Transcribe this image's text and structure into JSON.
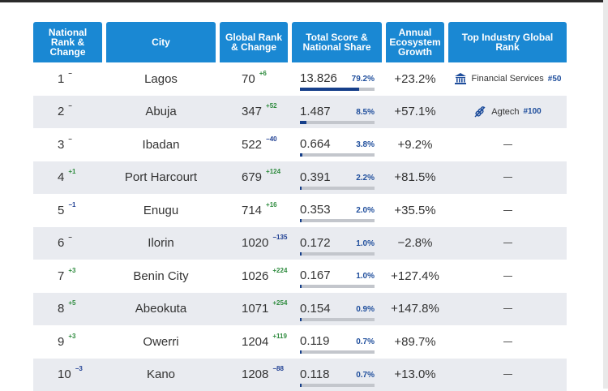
{
  "header": {
    "national_rank": "National Rank & Change",
    "city": "City",
    "global_rank": "Global Rank & Change",
    "total_score": "Total Score & National Share",
    "growth": "Annual Ecosystem Growth",
    "industry": "Top Industry Global Rank"
  },
  "rows": [
    {
      "rank": "1",
      "rank_change": "–",
      "city": "Lagos",
      "global": "70",
      "global_change": "+6",
      "score": "13.826",
      "share": "79.2%",
      "share_value": 79.2,
      "growth": "+23.2%",
      "industry": {
        "icon": "bank-icon",
        "label": "Financial Services",
        "rank": "#50"
      }
    },
    {
      "rank": "2",
      "rank_change": "–",
      "city": "Abuja",
      "global": "347",
      "global_change": "+52",
      "score": "1.487",
      "share": "8.5%",
      "share_value": 8.5,
      "growth": "+57.1%",
      "industry": {
        "icon": "agtech-icon",
        "label": "Agtech",
        "rank": "#100"
      }
    },
    {
      "rank": "3",
      "rank_change": "–",
      "city": "Ibadan",
      "global": "522",
      "global_change": "−40",
      "score": "0.664",
      "share": "3.8%",
      "share_value": 3.8,
      "growth": "+9.2%",
      "industry": null
    },
    {
      "rank": "4",
      "rank_change": "+1",
      "city": "Port Harcourt",
      "global": "679",
      "global_change": "+124",
      "score": "0.391",
      "share": "2.2%",
      "share_value": 2.2,
      "growth": "+81.5%",
      "industry": null
    },
    {
      "rank": "5",
      "rank_change": "−1",
      "city": "Enugu",
      "global": "714",
      "global_change": "+16",
      "score": "0.353",
      "share": "2.0%",
      "share_value": 2.0,
      "growth": "+35.5%",
      "industry": null
    },
    {
      "rank": "6",
      "rank_change": "–",
      "city": "Ilorin",
      "global": "1020",
      "global_change": "−135",
      "score": "0.172",
      "share": "1.0%",
      "share_value": 1.0,
      "growth": "−2.8%",
      "industry": null
    },
    {
      "rank": "7",
      "rank_change": "+3",
      "city": "Benin City",
      "global": "1026",
      "global_change": "+224",
      "score": "0.167",
      "share": "1.0%",
      "share_value": 1.0,
      "growth": "+127.4%",
      "industry": null
    },
    {
      "rank": "8",
      "rank_change": "+5",
      "city": "Abeokuta",
      "global": "1071",
      "global_change": "+254",
      "score": "0.154",
      "share": "0.9%",
      "share_value": 0.9,
      "growth": "+147.8%",
      "industry": null
    },
    {
      "rank": "9",
      "rank_change": "+3",
      "city": "Owerri",
      "global": "1204",
      "global_change": "+119",
      "score": "0.119",
      "share": "0.7%",
      "share_value": 0.7,
      "growth": "+89.7%",
      "industry": null
    },
    {
      "rank": "10",
      "rank_change": "−3",
      "city": "Kano",
      "global": "1208",
      "global_change": "−88",
      "score": "0.118",
      "share": "0.7%",
      "share_value": 0.7,
      "growth": "+13.0%",
      "industry": null
    }
  ],
  "colors": {
    "header_bg": "#1a88d3",
    "row_shade": "#e9ebf0",
    "bar_fill": "#163f8a",
    "bar_track": "#c3c6cc",
    "up": "#2e8b3e",
    "down": "#1f3f93"
  }
}
